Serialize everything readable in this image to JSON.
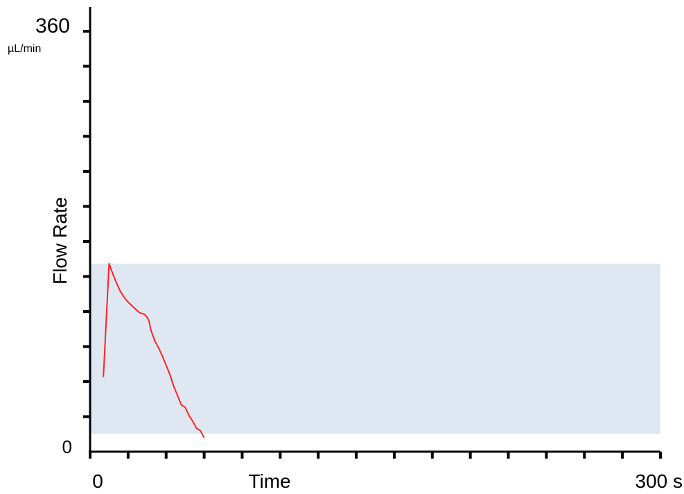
{
  "chart_data": {
    "type": "line",
    "title": "",
    "xlabel": "Time",
    "ylabel": "Flow Rate",
    "x_unit": "s",
    "y_unit": "µL/min",
    "xlim": [
      0,
      300
    ],
    "ylim": [
      0,
      360
    ],
    "x_tick_labels": [
      "0",
      "300 s"
    ],
    "y_tick_labels": [
      "0",
      "360"
    ],
    "x_minor_tick_step": 20,
    "y_minor_tick_step": 30,
    "grid": false,
    "shaded_band": {
      "y_min": 15,
      "y_max": 161,
      "x_min": 0,
      "x_max": 300,
      "color": "#dfe7f2"
    },
    "series": [
      {
        "color": "#ff2020",
        "x": [
          7,
          10,
          12,
          14,
          16,
          18,
          20,
          22,
          24,
          26,
          28,
          29,
          30,
          31,
          32,
          34,
          36,
          38,
          40,
          42,
          44,
          46,
          48,
          50,
          52,
          54,
          55,
          56,
          58,
          60
        ],
        "y": [
          64,
          161,
          152,
          144,
          137,
          132,
          128,
          125,
          122,
          119,
          118,
          117,
          115,
          112,
          104,
          95,
          89,
          82,
          74,
          66,
          56,
          48,
          40,
          38,
          31,
          26,
          23,
          20,
          18,
          12
        ]
      }
    ]
  }
}
